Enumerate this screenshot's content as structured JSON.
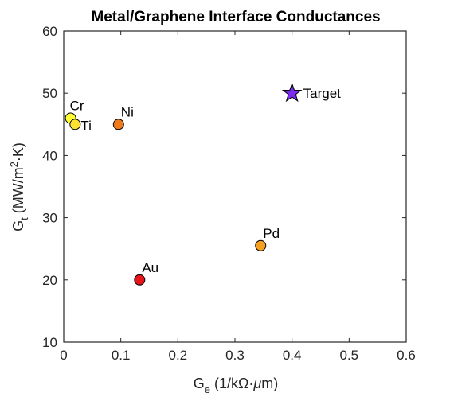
{
  "chart_data": {
    "type": "scatter",
    "title": "Metal/Graphene Interface Conductances",
    "xlabel": {
      "main": "G",
      "sub": "e",
      "rest": " (1/kΩ·",
      "mu": "μ",
      "end": "m)"
    },
    "ylabel": {
      "main": "G",
      "sub": "t",
      "rest": " (MW/m",
      "sup": "2",
      "end": "·K)"
    },
    "xlim": [
      0,
      0.6
    ],
    "ylim": [
      10,
      60
    ],
    "xticks": [
      0,
      0.1,
      0.2,
      0.3,
      0.4,
      0.5,
      0.6
    ],
    "xtick_labels": [
      "0",
      "0.1",
      "0.2",
      "0.3",
      "0.4",
      "0.5",
      "0.6"
    ],
    "yticks": [
      10,
      20,
      30,
      40,
      50,
      60
    ],
    "ytick_labels": [
      "10",
      "20",
      "30",
      "40",
      "50",
      "60"
    ],
    "grid": false,
    "points": [
      {
        "label": "Cr",
        "x": 0.012,
        "y": 46.0,
        "color": "#ffff33",
        "marker": "circle"
      },
      {
        "label": "Ti",
        "x": 0.02,
        "y": 45.0,
        "color": "#ffe033",
        "marker": "circle"
      },
      {
        "label": "Ni",
        "x": 0.096,
        "y": 45.0,
        "color": "#f07a1a",
        "marker": "circle"
      },
      {
        "label": "Pd",
        "x": 0.345,
        "y": 25.5,
        "color": "#f5a020",
        "marker": "circle"
      },
      {
        "label": "Au",
        "x": 0.133,
        "y": 20.0,
        "color": "#e8141b",
        "marker": "circle"
      },
      {
        "label": "Target",
        "x": 0.4,
        "y": 50.0,
        "color": "#7b2cf0",
        "marker": "star"
      }
    ]
  }
}
